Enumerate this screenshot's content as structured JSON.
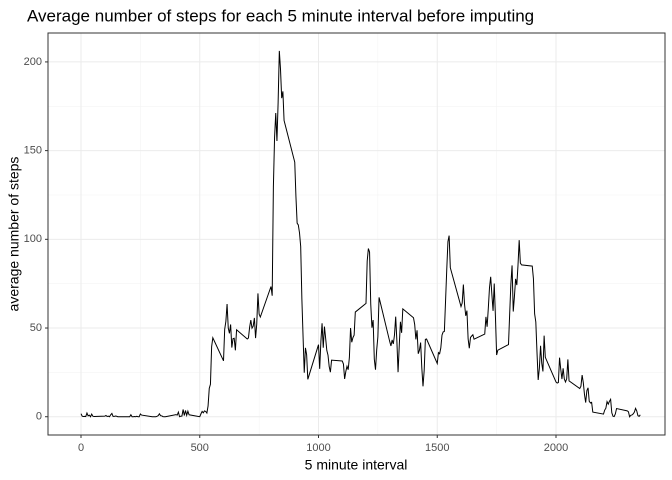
{
  "chart_data": {
    "type": "line",
    "title": "Average number of steps for each 5 minute interval before imputing",
    "x_label": "5 minute interval",
    "y_label": "average number of steps",
    "color": "#000000",
    "grid": true,
    "xlim": [
      -139,
      2459
    ],
    "ylim": [
      -10.3,
      216.3
    ],
    "xticks": [
      0,
      500,
      1000,
      1500,
      2000
    ],
    "yticks": [
      0,
      50,
      100,
      150,
      200
    ],
    "x": [
      0,
      5,
      10,
      15,
      20,
      25,
      30,
      35,
      40,
      45,
      50,
      55,
      100,
      105,
      110,
      115,
      120,
      125,
      130,
      135,
      140,
      145,
      150,
      155,
      200,
      205,
      210,
      215,
      220,
      225,
      230,
      235,
      240,
      245,
      250,
      255,
      300,
      305,
      310,
      315,
      320,
      325,
      330,
      335,
      340,
      345,
      350,
      355,
      400,
      405,
      410,
      415,
      420,
      425,
      430,
      435,
      440,
      445,
      450,
      455,
      500,
      505,
      510,
      515,
      520,
      525,
      530,
      535,
      540,
      545,
      550,
      555,
      600,
      605,
      610,
      615,
      620,
      625,
      630,
      635,
      640,
      645,
      650,
      655,
      700,
      705,
      710,
      715,
      720,
      725,
      730,
      735,
      740,
      745,
      750,
      755,
      800,
      805,
      810,
      815,
      820,
      825,
      830,
      835,
      840,
      845,
      850,
      855,
      900,
      905,
      910,
      915,
      920,
      925,
      930,
      935,
      940,
      945,
      950,
      955,
      1000,
      1005,
      1010,
      1015,
      1020,
      1025,
      1030,
      1035,
      1040,
      1045,
      1050,
      1055,
      1100,
      1105,
      1110,
      1115,
      1120,
      1125,
      1130,
      1135,
      1140,
      1145,
      1150,
      1155,
      1200,
      1205,
      1210,
      1215,
      1220,
      1225,
      1230,
      1235,
      1240,
      1245,
      1250,
      1255,
      1300,
      1305,
      1310,
      1315,
      1320,
      1325,
      1330,
      1335,
      1340,
      1345,
      1350,
      1355,
      1400,
      1405,
      1410,
      1415,
      1420,
      1425,
      1430,
      1435,
      1440,
      1445,
      1450,
      1455,
      1500,
      1505,
      1510,
      1515,
      1520,
      1525,
      1530,
      1535,
      1540,
      1545,
      1550,
      1555,
      1600,
      1605,
      1610,
      1615,
      1620,
      1625,
      1630,
      1635,
      1640,
      1645,
      1650,
      1655,
      1700,
      1705,
      1710,
      1715,
      1720,
      1725,
      1730,
      1735,
      1740,
      1745,
      1750,
      1755,
      1800,
      1805,
      1810,
      1815,
      1820,
      1825,
      1830,
      1835,
      1840,
      1845,
      1850,
      1855,
      1900,
      1905,
      1910,
      1915,
      1920,
      1925,
      1930,
      1935,
      1940,
      1945,
      1950,
      1955,
      2000,
      2005,
      2010,
      2015,
      2020,
      2025,
      2030,
      2035,
      2040,
      2045,
      2050,
      2055,
      2100,
      2105,
      2110,
      2115,
      2120,
      2125,
      2130,
      2135,
      2140,
      2145,
      2150,
      2155,
      2200,
      2205,
      2210,
      2215,
      2220,
      2225,
      2230,
      2235,
      2240,
      2245,
      2250,
      2255,
      2300,
      2305,
      2310,
      2315,
      2320,
      2325,
      2330,
      2335,
      2340,
      2345,
      2350,
      2355
    ],
    "values": [
      1.7,
      0.3,
      0.1,
      0.2,
      0.1,
      2.1,
      0.5,
      0.9,
      0,
      1.5,
      0.3,
      0.1,
      0.32,
      0.68,
      0.15,
      0.34,
      0,
      1.11,
      1.83,
      0.17,
      0.17,
      0.38,
      0.26,
      0,
      0,
      0,
      1.13,
      0,
      0,
      0.13,
      0,
      0.23,
      0,
      0,
      1.55,
      0.94,
      0,
      0,
      0,
      0,
      0.21,
      0.62,
      1.62,
      0.58,
      0.49,
      0.08,
      0,
      0,
      1.2,
      0.9,
      2.6,
      0,
      0.3,
      0.4,
      4.1,
      0.7,
      3.5,
      0.8,
      3.1,
      1.1,
      0,
      1.6,
      3,
      2.2,
      3.3,
      2.96,
      2.1,
      6.1,
      16,
      18.3,
      39.5,
      44.5,
      31.5,
      49.3,
      53.8,
      63.5,
      50,
      47,
      52,
      39,
      44,
      44.2,
      37.4,
      49,
      43.8,
      44.4,
      50.5,
      54.5,
      49.9,
      51,
      55.7,
      44.3,
      52.3,
      69.5,
      57.8,
      56.2,
      73.4,
      68.2,
      129.4,
      157.5,
      171.2,
      155.4,
      177.3,
      206.2,
      195.9,
      179.6,
      183.4,
      167,
      143.5,
      124,
      109.1,
      108.1,
      103.7,
      96,
      66.2,
      45.2,
      24.8,
      38.8,
      35,
      21.1,
      40.6,
      27,
      42.4,
      52.7,
      38.9,
      50.8,
      44.3,
      37.4,
      34.7,
      28.3,
      25.1,
      31.9,
      31.4,
      29.7,
      21.3,
      25.5,
      28.4,
      26.5,
      33.4,
      50,
      42,
      44.6,
      46,
      59,
      63.9,
      87.7,
      94.8,
      92.8,
      63.4,
      50.2,
      54.5,
      32.4,
      26.5,
      37.7,
      45,
      67.3,
      42.3,
      39.9,
      43.3,
      41,
      46.2,
      56.4,
      42.8,
      25.1,
      40,
      53.5,
      47.3,
      60.8,
      55.8,
      52,
      43.6,
      48.7,
      35.5,
      37.5,
      41.8,
      27.5,
      17.1,
      26.1,
      43.6,
      43.8,
      30,
      36.1,
      35.5,
      38.8,
      46,
      47.8,
      48.1,
      65.3,
      82.9,
      98.7,
      102.1,
      84,
      62.1,
      64.1,
      74.5,
      63.2,
      56.9,
      59.8,
      43.9,
      38.6,
      44.7,
      45.5,
      46.2,
      43.7,
      46.6,
      56.3,
      50.7,
      61.2,
      72.7,
      78.9,
      68.9,
      59.7,
      75.1,
      56.5,
      34.8,
      37.5,
      40.7,
      58,
      74.7,
      85.3,
      59.3,
      67.8,
      77.7,
      74.2,
      85.3,
      99.5,
      86.6,
      85.6,
      84.9,
      77.8,
      58,
      53.4,
      36.3,
      20.7,
      27.4,
      40,
      30.2,
      25.5,
      45.7,
      33.5,
      19.6,
      19,
      19.3,
      33.3,
      26.8,
      21.2,
      27.3,
      21.3,
      19.6,
      21.3,
      32.3,
      20.2,
      15.9,
      17.2,
      23.5,
      19.2,
      12.5,
      8,
      14.7,
      16.3,
      8.7,
      7.8,
      8.1,
      2.6,
      1.5,
      3.7,
      4.8,
      8.5,
      7.1,
      8.7,
      9.8,
      2.2,
      0.3,
      0.1,
      1.6,
      4.6,
      3.3,
      2.8,
      0,
      0.8,
      1,
      1.6,
      2.6,
      4.7,
      3.3,
      0.6,
      0.2,
      1.1
    ]
  }
}
